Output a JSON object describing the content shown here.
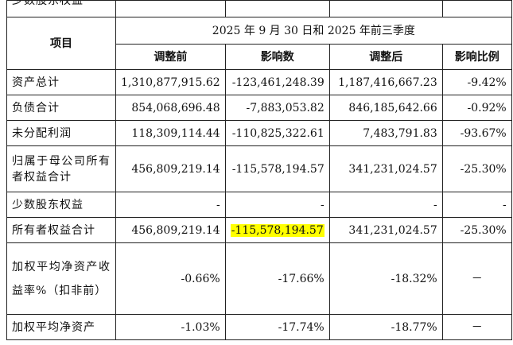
{
  "table": {
    "cut_row_label": "少数股东权益",
    "period_header": "2025 年 9 月 30 日和 2025 年前三季度",
    "item_header": "项目",
    "columns": [
      "调整前",
      "影响数",
      "调整后",
      "影响比例"
    ],
    "rows": [
      {
        "label": "资产总计",
        "before": "1,310,877,915.62",
        "impact": "-123,461,248.39",
        "after": "1,187,416,667.23",
        "ratio": "-9.42%"
      },
      {
        "label": "负债合计",
        "before": "854,068,696.48",
        "impact": "-7,883,053.82",
        "after": "846,185,642.66",
        "ratio": "-0.92%"
      },
      {
        "label": "未分配利润",
        "before": "118,309,114.44",
        "impact": "-110,825,322.61",
        "after": "7,483,791.83",
        "ratio": "-93.67%"
      },
      {
        "label": "归属于母公司所有者权益合计",
        "before": "456,809,219.14",
        "impact": "-115,578,194.57",
        "after": "341,231,024.57",
        "ratio": "-25.30%"
      },
      {
        "label": "少数股东权益",
        "before": "-",
        "impact": "-",
        "after": "-",
        "ratio": "-"
      },
      {
        "label": "所有者权益合计",
        "before": "456,809,219.14",
        "impact": "-115,578,194.57",
        "after": "341,231,024.57",
        "ratio": "-25.30%"
      },
      {
        "label": "加权平均净资产收益率%（扣非前）",
        "before": "-0.66%",
        "impact": "-17.66%",
        "after": "-18.32%",
        "ratio": "－"
      },
      {
        "label": "加权平均净资产",
        "before": "-1.03%",
        "impact": "-17.74%",
        "after": "-18.77%",
        "ratio": "－"
      }
    ]
  },
  "highlight_color": "#ffff00"
}
